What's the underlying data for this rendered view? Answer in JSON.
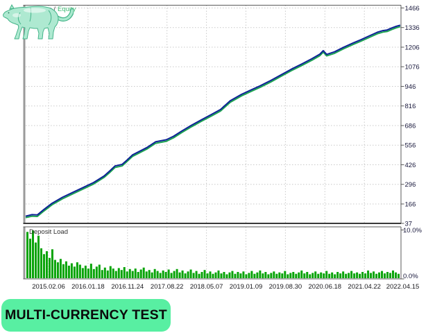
{
  "legend": {
    "separator": "/",
    "balance_color": "#3a3ec9",
    "equity_color": "#3cba72",
    "separator_color": "#3c3c3c"
  },
  "chart_data": [
    {
      "type": "line",
      "title": "Balance / Equity",
      "ylim": [
        37,
        1466
      ],
      "y_ticks": [
        1466,
        1336,
        1206,
        1076,
        946,
        816,
        686,
        556,
        426,
        296,
        166,
        37
      ],
      "x_ticks": [
        "2015.02.06",
        "2016.01.18",
        "2016.11.24",
        "2017.08.22",
        "2018.05.07",
        "2019.01.09",
        "2019.08.30",
        "2020.06.18",
        "2021.04.22",
        "2022.04.15"
      ],
      "series": [
        {
          "name": "Balance",
          "color": "#0e2296",
          "points": [
            [
              0,
              85
            ],
            [
              0.017,
              95
            ],
            [
              0.031,
              93
            ],
            [
              0.048,
              128
            ],
            [
              0.07,
              170
            ],
            [
              0.098,
              210
            ],
            [
              0.126,
              243
            ],
            [
              0.153,
              275
            ],
            [
              0.181,
              308
            ],
            [
              0.209,
              352
            ],
            [
              0.224,
              385
            ],
            [
              0.238,
              418
            ],
            [
              0.257,
              428
            ],
            [
              0.272,
              462
            ],
            [
              0.285,
              492
            ],
            [
              0.301,
              512
            ],
            [
              0.323,
              540
            ],
            [
              0.346,
              578
            ],
            [
              0.375,
              592
            ],
            [
              0.394,
              615
            ],
            [
              0.416,
              650
            ],
            [
              0.442,
              688
            ],
            [
              0.468,
              724
            ],
            [
              0.494,
              758
            ],
            [
              0.519,
              792
            ],
            [
              0.545,
              850
            ],
            [
              0.575,
              893
            ],
            [
              0.601,
              923
            ],
            [
              0.625,
              950
            ],
            [
              0.653,
              985
            ],
            [
              0.68,
              1022
            ],
            [
              0.708,
              1060
            ],
            [
              0.736,
              1095
            ],
            [
              0.763,
              1130
            ],
            [
              0.784,
              1160
            ],
            [
              0.793,
              1183
            ],
            [
              0.802,
              1158
            ],
            [
              0.823,
              1175
            ],
            [
              0.847,
              1205
            ],
            [
              0.871,
              1232
            ],
            [
              0.893,
              1255
            ],
            [
              0.915,
              1280
            ],
            [
              0.937,
              1305
            ],
            [
              0.952,
              1316
            ],
            [
              0.963,
              1320
            ],
            [
              0.976,
              1334
            ],
            [
              0.987,
              1344
            ],
            [
              0.998,
              1352
            ]
          ]
        },
        {
          "name": "Equity",
          "color": "#1ca351",
          "value_offset": -10
        }
      ]
    },
    {
      "type": "bar",
      "title": "Deposit Load",
      "ylim": [
        0,
        10
      ],
      "y_tick_labels": [
        "10.0%",
        "0.0%"
      ],
      "color": "#07a307",
      "values": [
        9.6,
        8.2,
        9.9,
        7.4,
        8.8,
        6.2,
        5.0,
        5.6,
        4.2,
        6.0,
        3.8,
        3.3,
        4.0,
        2.9,
        3.5,
        2.6,
        3.1,
        2.4,
        3.3,
        2.8,
        2.1,
        2.6,
        2.0,
        3.0,
        1.9,
        2.4,
        2.8,
        1.7,
        2.2,
        1.6,
        2.5,
        2.0,
        1.5,
        2.1,
        1.7,
        2.3,
        1.4,
        1.9,
        1.5,
        2.0,
        1.3,
        1.8,
        2.2,
        1.4,
        1.7,
        1.2,
        1.9,
        1.5,
        1.1,
        1.6,
        1.3,
        1.8,
        1.1,
        1.5,
        1.9,
        1.2,
        1.6,
        1.0,
        1.4,
        1.8,
        1.1,
        1.5,
        0.9,
        1.3,
        1.7,
        1.0,
        1.4,
        0.9,
        1.2,
        1.6,
        1.0,
        1.3,
        0.8,
        1.2,
        1.5,
        0.9,
        1.3,
        1.0,
        1.4,
        0.8,
        1.1,
        1.5,
        0.9,
        1.2,
        1.6,
        1.0,
        1.3,
        0.8,
        1.1,
        1.4,
        0.9,
        1.2,
        1.0,
        1.5,
        0.8,
        1.1,
        1.3,
        0.9,
        1.2,
        1.6,
        1.0,
        1.3,
        0.8,
        1.1,
        1.4,
        0.9,
        1.2,
        1.0,
        1.5,
        0.9,
        1.2,
        0.8,
        1.3,
        1.0,
        1.4,
        0.9,
        1.1,
        1.5,
        1.0,
        1.2,
        0.9,
        1.3,
        1.0,
        1.6,
        1.1,
        1.4,
        0.9,
        1.2,
        1.5,
        1.0,
        1.3,
        1.1,
        1.6,
        1.2,
        0.9
      ]
    }
  ],
  "badge": {
    "label": "MULTI-CURRENCY TEST",
    "bg": "#58efa2",
    "text_color": "#0b0b0b"
  },
  "frame_colors": {
    "grid": "#c9c9c9",
    "border": "#5a5a5a",
    "border_dark": "#3a3a3a",
    "left_band": "#9a9a9a",
    "axis_text": "#16163a",
    "x_axis_text": "#18181c"
  }
}
